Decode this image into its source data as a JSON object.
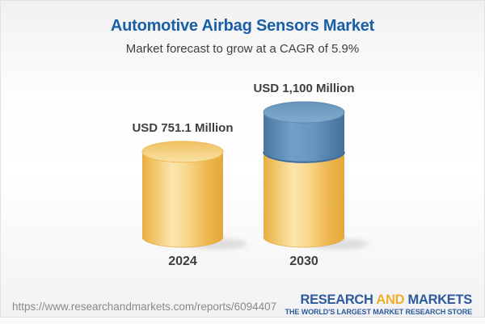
{
  "colors": {
    "title_blue": "#1A5FA6",
    "text_dark": "#3C4043",
    "url_gray": "#8A8A8A",
    "logo_blue": "#2C5A9B",
    "logo_gold": "#EFAF2E",
    "bg_top": "#F1F1F2",
    "bg_bottom": "#F2F2F4",
    "border": "#E3E3E4"
  },
  "chart_data": {
    "type": "bar",
    "subtype": "3d-cylinder-stacked",
    "title": "Automotive Airbag Sensors Market",
    "subtitle": "Market forecast to grow at a CAGR of 5.9%",
    "unit": "USD Million",
    "cagr_percent": 5.9,
    "categories": [
      "2024",
      "2030"
    ],
    "values": [
      751.1,
      1100
    ],
    "value_labels": [
      "USD 751.1 Million",
      "USD 1,100 Million"
    ],
    "series": [
      {
        "name": "2024 base value",
        "color": "#F5CE74",
        "values": [
          751.1,
          751.1
        ]
      },
      {
        "name": "Growth to 2030",
        "color": "#5E8CB6",
        "values": [
          0,
          348.9
        ]
      }
    ],
    "ylim": [
      0,
      1100
    ],
    "gridlines": false,
    "legend": "none",
    "style": {
      "shadow": "#C4C4C4",
      "yellow_edge": "#E0A83E",
      "yellow_top_edge": "#EDBC58",
      "blue_edge": "#3E6D9D",
      "blue_top_edge": "#5E88B2",
      "gradients": {
        "gy-body": {
          "dir": "h",
          "stops": [
            [
              0,
              "#E8AE42"
            ],
            [
              0.12,
              "#F0C163"
            ],
            [
              0.37,
              "#FCE6AE"
            ],
            [
              0.55,
              "#F8D88C"
            ],
            [
              0.8,
              "#EDB74F"
            ],
            [
              1,
              "#E3A83B"
            ]
          ]
        },
        "gy-top": {
          "dir": "v",
          "stops": [
            [
              0,
              "#EFBF5F"
            ],
            [
              1,
              "#FAE3A6"
            ]
          ]
        },
        "gb-body": {
          "dir": "h",
          "stops": [
            [
              0,
              "#4A76A3"
            ],
            [
              0.35,
              "#719FC6"
            ],
            [
              0.6,
              "#6697C1"
            ],
            [
              1,
              "#44709B"
            ]
          ]
        },
        "gb-top": {
          "dir": "v",
          "stops": [
            [
              0,
              "#6795BE"
            ],
            [
              1,
              "#83ABCE"
            ]
          ]
        }
      }
    }
  },
  "footer": {
    "url": "https://www.researchandmarkets.com/reports/6094407",
    "logo": {
      "research": "RESEARCH",
      "and": "AND",
      "markets": "MARKETS",
      "tagline": "THE WORLD'S LARGEST MARKET RESEARCH STORE"
    }
  }
}
